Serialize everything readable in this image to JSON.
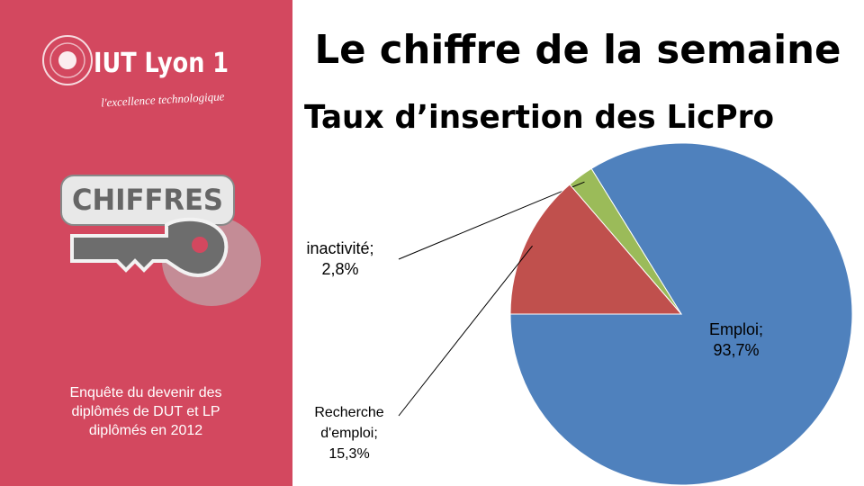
{
  "slide_title": "Le chiffre de la semaine",
  "sidebar": {
    "logo_name": "IUT Lyon 1",
    "logo_tagline": "l'excellence technologique",
    "badge": "CHIFFRES",
    "note_lines": [
      "Enquête du devenir des",
      "diplômés de DUT et LP",
      "diplômés en 2012"
    ]
  },
  "chart_data": {
    "type": "pie",
    "title": "Taux d’insertion des LicPro",
    "categories": [
      "Emploi;",
      "inactivité;",
      "Recherche d'emploi;"
    ],
    "values": [
      93.7,
      2.8,
      15.3
    ],
    "value_labels": [
      "93,7%",
      "2,8%",
      "15,3%"
    ],
    "colors": [
      "#4f81bd",
      "#9bbb59",
      "#c0504d"
    ]
  }
}
